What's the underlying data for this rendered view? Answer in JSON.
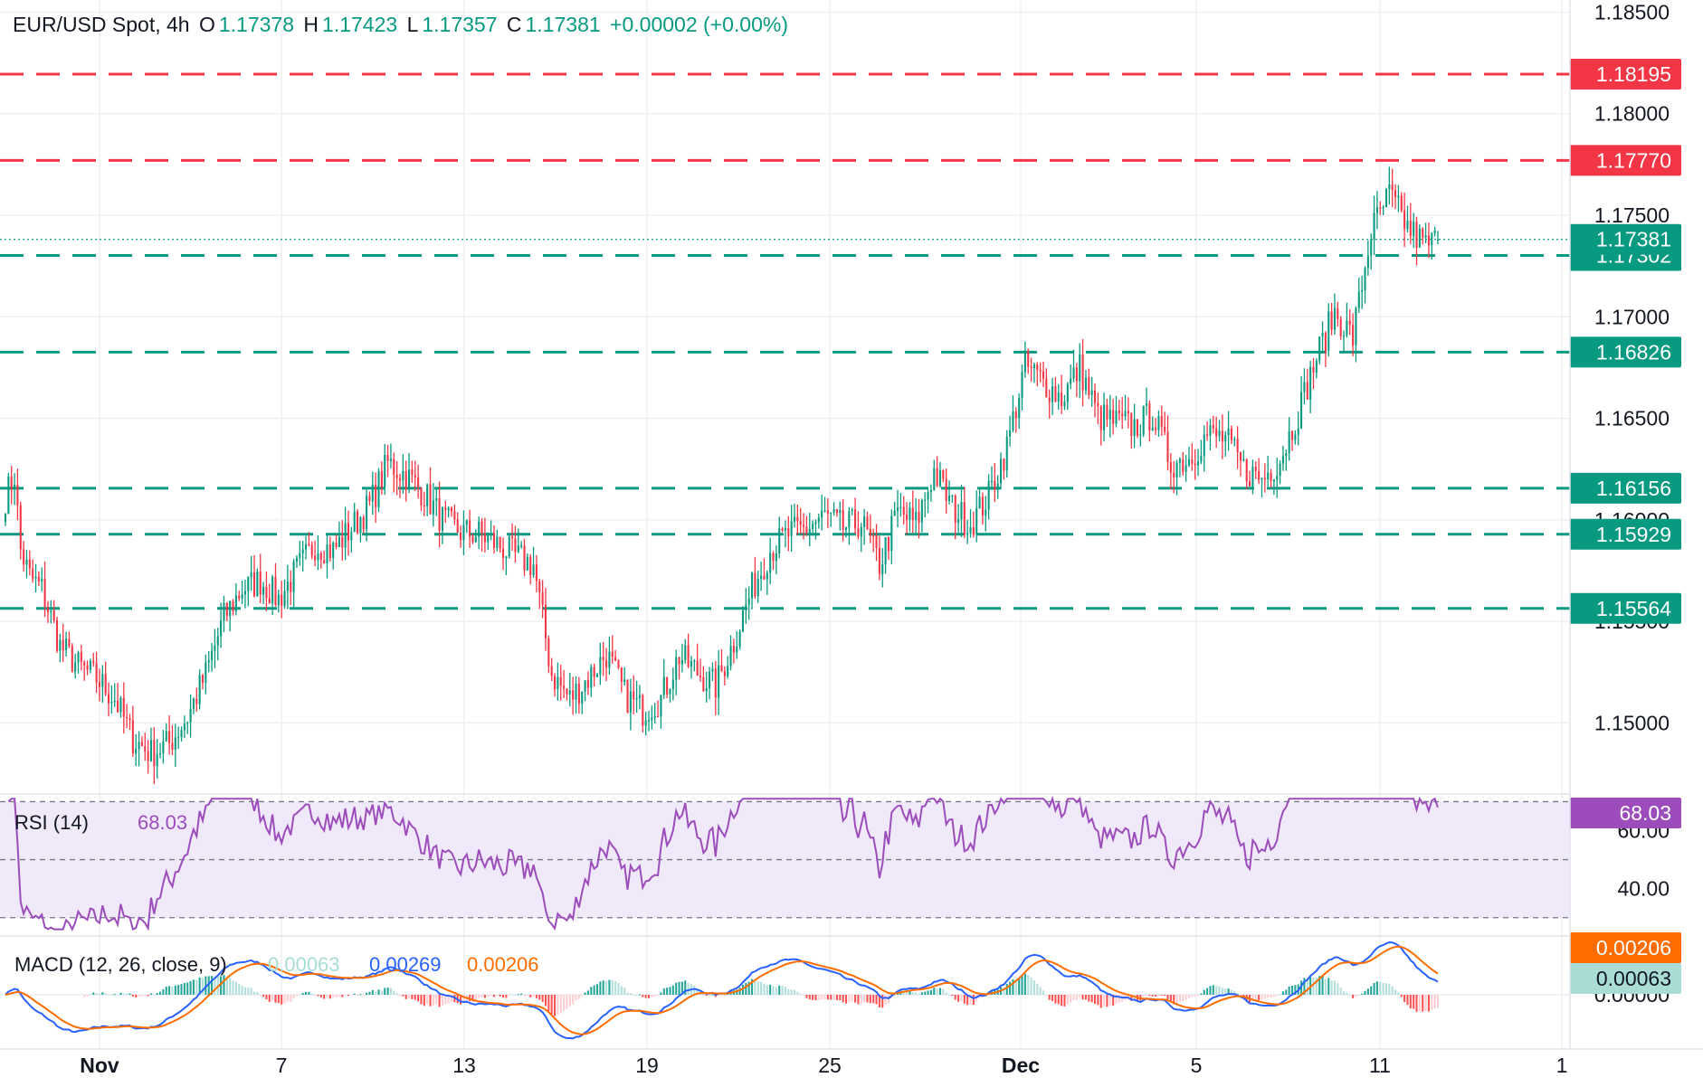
{
  "header": {
    "symbol": "EUR/USD Spot, 4h",
    "open_label": "O",
    "open": "1.17378",
    "high_label": "H",
    "high": "1.17423",
    "low_label": "L",
    "low": "1.17357",
    "close_label": "C",
    "close": "1.17381",
    "change": "+0.00002 (+0.00%)"
  },
  "colors": {
    "up": "#089981",
    "down": "#F23645",
    "rsi": "#9C4DBB",
    "rsi_bg": "#EFE9FA",
    "macd": "#2962FF",
    "signal": "#FF6D00",
    "grid": "#EEF0F3",
    "text": "#131722"
  },
  "chart_data": [
    {
      "type": "candlestick",
      "title": "EUR/USD Spot, 4h",
      "y_axis_ticks": [
        "1.18500",
        "1.18000",
        "1.17500",
        "1.17000",
        "1.16500",
        "1.16000",
        "1.15500",
        "1.15000"
      ],
      "ylim": [
        1.1465,
        1.1856
      ],
      "x_axis_ticks": [
        "Nov",
        "7",
        "13",
        "19",
        "25",
        "Dec",
        "5",
        "11",
        "1"
      ],
      "levels": [
        {
          "value": 1.18195,
          "label": "1.18195",
          "kind": "resistance",
          "color": "#F23645"
        },
        {
          "value": 1.1777,
          "label": "1.17770",
          "kind": "resistance",
          "color": "#F23645"
        },
        {
          "value": 1.17302,
          "label": "1.17302",
          "kind": "support",
          "color": "#089981"
        },
        {
          "value": 1.16826,
          "label": "1.16826",
          "kind": "support",
          "color": "#089981"
        },
        {
          "value": 1.16156,
          "label": "1.16156",
          "kind": "support",
          "color": "#089981"
        },
        {
          "value": 1.15929,
          "label": "1.15929",
          "kind": "support",
          "color": "#089981"
        },
        {
          "value": 1.15564,
          "label": "1.15564",
          "kind": "support",
          "color": "#089981"
        }
      ],
      "last_price": {
        "value": 1.17381,
        "label": "1.17381"
      },
      "path_anchors": [
        [
          0,
          1.1611
        ],
        [
          3,
          1.1622
        ],
        [
          5,
          1.1585
        ],
        [
          8,
          1.1572
        ],
        [
          12,
          1.1566
        ],
        [
          18,
          1.1538
        ],
        [
          24,
          1.1528
        ],
        [
          30,
          1.1522
        ],
        [
          36,
          1.1512
        ],
        [
          42,
          1.1492
        ],
        [
          48,
          1.1485
        ],
        [
          54,
          1.149
        ],
        [
          60,
          1.1503
        ],
        [
          66,
          1.1524
        ],
        [
          72,
          1.1552
        ],
        [
          78,
          1.1566
        ],
        [
          84,
          1.157
        ],
        [
          90,
          1.1561
        ],
        [
          96,
          1.1575
        ],
        [
          102,
          1.1588
        ],
        [
          108,
          1.1585
        ],
        [
          114,
          1.1596
        ],
        [
          120,
          1.1607
        ],
        [
          126,
          1.1628
        ],
        [
          132,
          1.1622
        ],
        [
          138,
          1.1613
        ],
        [
          144,
          1.16
        ],
        [
          150,
          1.1594
        ],
        [
          156,
          1.1593
        ],
        [
          162,
          1.1588
        ],
        [
          168,
          1.1582
        ],
        [
          174,
          1.1578
        ],
        [
          180,
          1.1524
        ],
        [
          186,
          1.1512
        ],
        [
          192,
          1.1522
        ],
        [
          198,
          1.1534
        ],
        [
          204,
          1.1514
        ],
        [
          210,
          1.1506
        ],
        [
          216,
          1.1512
        ],
        [
          222,
          1.1533
        ],
        [
          228,
          1.1525
        ],
        [
          234,
          1.1518
        ],
        [
          240,
          1.154
        ],
        [
          246,
          1.1566
        ],
        [
          252,
          1.1585
        ],
        [
          258,
          1.1593
        ],
        [
          264,
          1.1596
        ],
        [
          270,
          1.1602
        ],
        [
          276,
          1.1596
        ],
        [
          282,
          1.1599
        ],
        [
          288,
          1.1578
        ],
        [
          294,
          1.1604
        ],
        [
          300,
          1.1598
        ],
        [
          306,
          1.1624
        ],
        [
          312,
          1.1606
        ],
        [
          318,
          1.1598
        ],
        [
          324,
          1.1612
        ],
        [
          330,
          1.1636
        ],
        [
          336,
          1.1676
        ],
        [
          342,
          1.1668
        ],
        [
          348,
          1.166
        ],
        [
          354,
          1.1675
        ],
        [
          360,
          1.1651
        ],
        [
          366,
          1.1648
        ],
        [
          372,
          1.1646
        ],
        [
          378,
          1.1652
        ],
        [
          384,
          1.1628
        ],
        [
          390,
          1.163
        ],
        [
          396,
          1.1642
        ],
        [
          402,
          1.164
        ],
        [
          408,
          1.1625
        ],
        [
          414,
          1.162
        ],
        [
          420,
          1.163
        ],
        [
          426,
          1.1653
        ],
        [
          432,
          1.168
        ],
        [
          438,
          1.1702
        ],
        [
          444,
          1.169
        ],
        [
          450,
          1.1742
        ],
        [
          456,
          1.176
        ],
        [
          462,
          1.1744
        ],
        [
          468,
          1.1735
        ],
        [
          472,
          1.1738
        ]
      ]
    },
    {
      "type": "line",
      "title": "RSI (14)",
      "value_label": "68.03",
      "series": [
        {
          "name": "RSI (14)",
          "last": 68.03
        }
      ],
      "y_axis_ticks": [
        "60.00",
        "40.00"
      ],
      "ylim": [
        24,
        72
      ],
      "bands": [
        70,
        50,
        30
      ]
    },
    {
      "type": "line",
      "title": "MACD (12, 26, close, 9)",
      "values_shown": {
        "histogram": "0.00063",
        "macd": "0.00269",
        "signal": "0.00206"
      },
      "series": [
        {
          "name": "MACD",
          "last": 0.00269
        },
        {
          "name": "Signal",
          "last": 0.00206
        },
        {
          "name": "Histogram",
          "last": 0.00063
        }
      ],
      "y_axis_ticks": [
        "0.00000"
      ],
      "badges": [
        "0.00206",
        "0.00063"
      ]
    }
  ]
}
